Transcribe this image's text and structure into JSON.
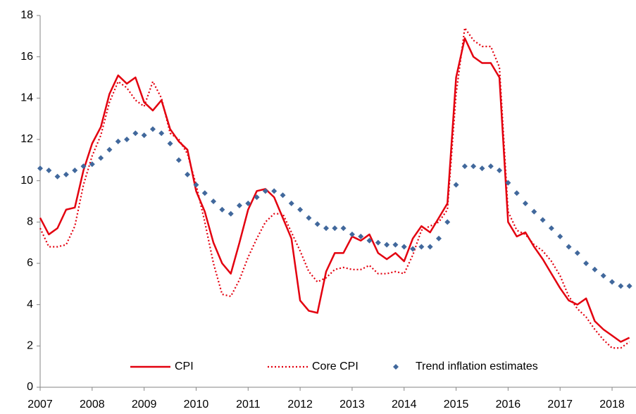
{
  "chart_data": {
    "type": "line",
    "x": [
      2007,
      2007.167,
      2007.333,
      2007.5,
      2007.667,
      2007.833,
      2008,
      2008.167,
      2008.333,
      2008.5,
      2008.667,
      2008.833,
      2009,
      2009.167,
      2009.333,
      2009.5,
      2009.667,
      2009.833,
      2010,
      2010.167,
      2010.333,
      2010.5,
      2010.667,
      2010.833,
      2011,
      2011.167,
      2011.333,
      2011.5,
      2011.667,
      2011.833,
      2012,
      2012.167,
      2012.333,
      2012.5,
      2012.667,
      2012.833,
      2013,
      2013.167,
      2013.333,
      2013.5,
      2013.667,
      2013.833,
      2014,
      2014.167,
      2014.333,
      2014.5,
      2014.667,
      2014.833,
      2015,
      2015.167,
      2015.333,
      2015.5,
      2015.667,
      2015.833,
      2016,
      2016.167,
      2016.333,
      2016.5,
      2016.667,
      2016.833,
      2017,
      2017.167,
      2017.333,
      2017.5,
      2017.667,
      2017.833,
      2018,
      2018.167,
      2018.333
    ],
    "series": [
      {
        "name": "CPI",
        "color": "#e3000f",
        "style": "solid",
        "values": [
          8.2,
          7.4,
          7.7,
          8.6,
          8.7,
          10.5,
          11.8,
          12.6,
          14.2,
          15.1,
          14.7,
          15.0,
          13.8,
          13.4,
          13.9,
          12.5,
          11.9,
          11.5,
          9.5,
          8.5,
          7.0,
          6.0,
          5.5,
          7.0,
          8.6,
          9.5,
          9.6,
          9.2,
          8.2,
          7.2,
          4.2,
          3.7,
          3.6,
          5.6,
          6.5,
          6.5,
          7.3,
          7.1,
          7.4,
          6.5,
          6.2,
          6.5,
          6.1,
          7.2,
          7.8,
          7.5,
          8.2,
          8.9,
          15.0,
          16.9,
          16.0,
          15.7,
          15.7,
          15.0,
          8.0,
          7.3,
          7.5,
          6.8,
          6.2,
          5.5,
          4.8,
          4.2,
          4.0,
          4.3,
          3.2,
          2.8,
          2.5,
          2.2,
          2.4
        ]
      },
      {
        "name": "Core CPI",
        "color": "#e3000f",
        "style": "dotted",
        "values": [
          7.7,
          6.8,
          6.8,
          6.9,
          7.8,
          9.8,
          11.2,
          12.2,
          13.8,
          14.8,
          14.5,
          13.9,
          13.6,
          14.8,
          14.0,
          12.3,
          12.0,
          11.3,
          9.8,
          8.0,
          6.0,
          4.5,
          4.4,
          5.2,
          6.3,
          7.2,
          8.0,
          8.4,
          8.4,
          7.5,
          6.6,
          5.6,
          5.1,
          5.3,
          5.7,
          5.8,
          5.7,
          5.7,
          5.9,
          5.5,
          5.5,
          5.6,
          5.5,
          6.4,
          7.6,
          7.8,
          8.0,
          8.6,
          14.2,
          17.4,
          16.8,
          16.5,
          16.5,
          15.5,
          8.5,
          7.6,
          7.4,
          6.9,
          6.6,
          6.1,
          5.4,
          4.4,
          3.8,
          3.4,
          2.8,
          2.3,
          1.9,
          1.9,
          2.2
        ]
      },
      {
        "name": "Trend inflation estimates",
        "color": "#41689c",
        "style": "markers",
        "values": [
          10.6,
          10.5,
          10.2,
          10.3,
          10.5,
          10.7,
          10.8,
          11.1,
          11.5,
          11.9,
          12.0,
          12.3,
          12.2,
          12.5,
          12.3,
          11.8,
          11.0,
          10.3,
          9.8,
          9.4,
          9.0,
          8.6,
          8.4,
          8.8,
          8.9,
          9.2,
          9.5,
          9.5,
          9.3,
          8.9,
          8.6,
          8.2,
          7.9,
          7.7,
          7.7,
          7.7,
          7.4,
          7.3,
          7.1,
          7.0,
          6.9,
          6.9,
          6.8,
          6.7,
          6.8,
          6.8,
          7.2,
          8.0,
          9.8,
          10.7,
          10.7,
          10.6,
          10.7,
          10.5,
          9.9,
          9.4,
          8.9,
          8.5,
          8.1,
          7.7,
          7.3,
          6.8,
          6.5,
          6.0,
          5.7,
          5.4,
          5.1,
          4.9,
          4.9
        ]
      }
    ],
    "xlim": [
      2007,
      2018.46
    ],
    "xticks": [
      2007,
      2008,
      2009,
      2010,
      2011,
      2012,
      2013,
      2014,
      2015,
      2016,
      2017,
      2018
    ],
    "ylim": [
      0,
      18
    ],
    "yticks": [
      0,
      2,
      4,
      6,
      8,
      10,
      12,
      14,
      16,
      18
    ],
    "grid": false,
    "legend": "bottom"
  }
}
